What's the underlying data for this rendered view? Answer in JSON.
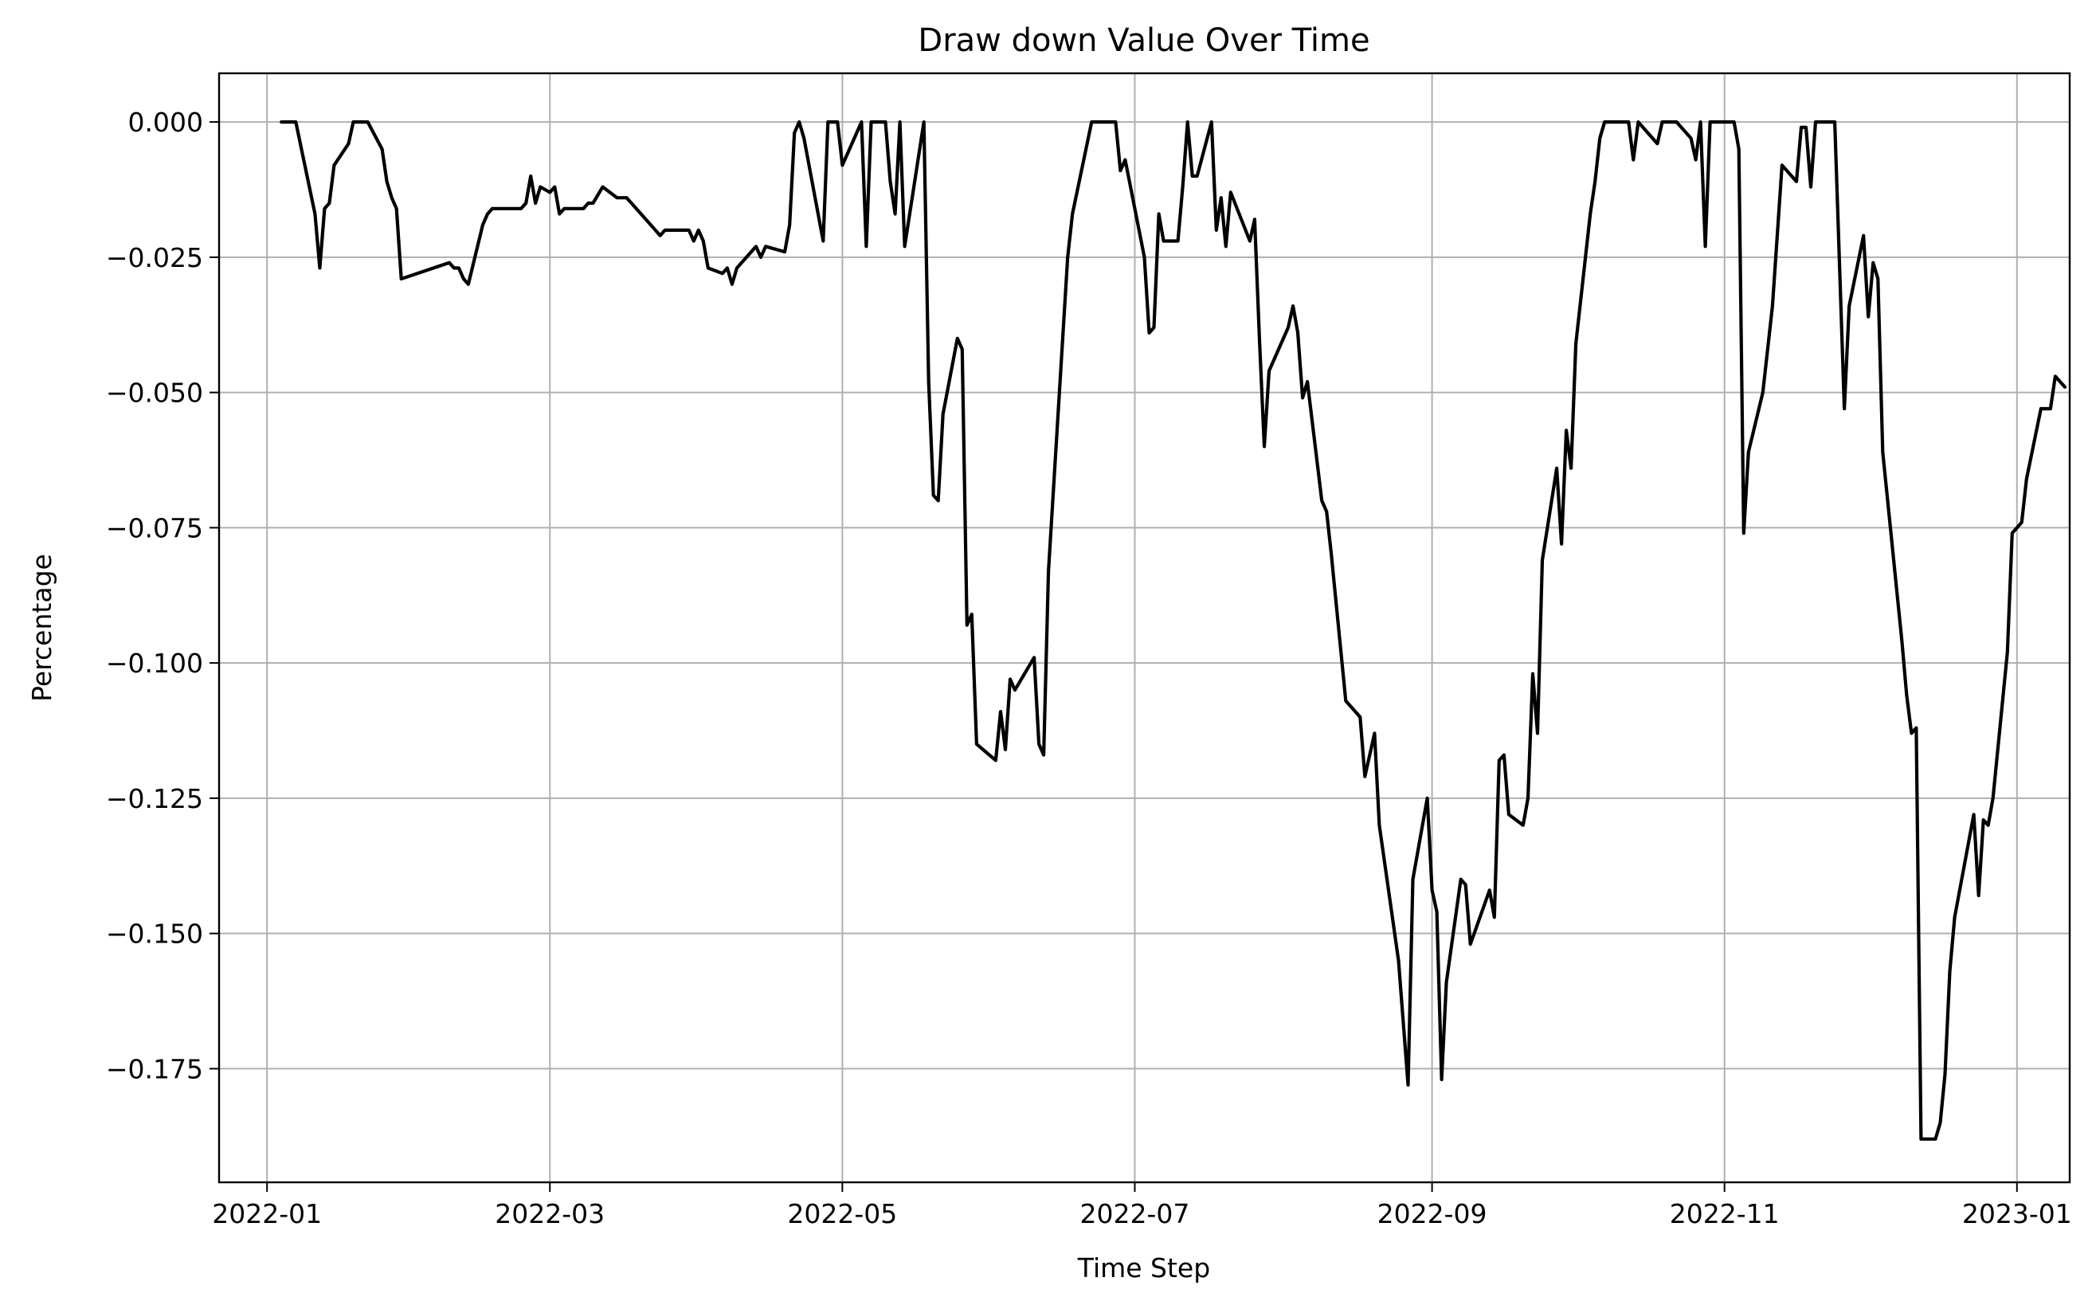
{
  "chart_data": {
    "type": "line",
    "title": "Draw down Value Over Time",
    "xlabel": "Time Step",
    "ylabel": "Percentage",
    "xlim": [
      "2021-12-22",
      "2023-01-12"
    ],
    "ylim": [
      -0.196,
      0.009
    ],
    "x_ticks": [
      "2022-01-01",
      "2022-03-01",
      "2022-05-01",
      "2022-07-01",
      "2022-09-01",
      "2022-11-01",
      "2023-01-01"
    ],
    "x_tick_labels": [
      "2022-01",
      "2022-03",
      "2022-05",
      "2022-07",
      "2022-09",
      "2022-11",
      "2023-01"
    ],
    "y_ticks": [
      0.0,
      -0.025,
      -0.05,
      -0.075,
      -0.1,
      -0.125,
      -0.15,
      -0.175
    ],
    "y_tick_labels": [
      "0.000",
      "−0.025",
      "−0.050",
      "−0.075",
      "−0.100",
      "−0.125",
      "−0.150",
      "−0.175"
    ],
    "grid": true,
    "line_color": "#000000",
    "series": [
      {
        "points": [
          [
            "2022-01-04",
            0.0
          ],
          [
            "2022-01-07",
            0.0
          ],
          [
            "2022-01-11",
            -0.017
          ],
          [
            "2022-01-12",
            -0.027
          ],
          [
            "2022-01-13",
            -0.016
          ],
          [
            "2022-01-14",
            -0.015
          ],
          [
            "2022-01-15",
            -0.008
          ],
          [
            "2022-01-18",
            -0.004
          ],
          [
            "2022-01-19",
            0.0
          ],
          [
            "2022-01-20",
            0.0
          ],
          [
            "2022-01-22",
            0.0
          ],
          [
            "2022-01-25",
            -0.005
          ],
          [
            "2022-01-26",
            -0.011
          ],
          [
            "2022-01-27",
            -0.014
          ],
          [
            "2022-01-28",
            -0.016
          ],
          [
            "2022-01-29",
            -0.029
          ],
          [
            "2022-02-08",
            -0.026
          ],
          [
            "2022-02-09",
            -0.027
          ],
          [
            "2022-02-10",
            -0.027
          ],
          [
            "2022-02-11",
            -0.029
          ],
          [
            "2022-02-12",
            -0.03
          ],
          [
            "2022-02-15",
            -0.019
          ],
          [
            "2022-02-16",
            -0.017
          ],
          [
            "2022-02-17",
            -0.016
          ],
          [
            "2022-02-23",
            -0.016
          ],
          [
            "2022-02-24",
            -0.015
          ],
          [
            "2022-02-25",
            -0.01
          ],
          [
            "2022-02-26",
            -0.015
          ],
          [
            "2022-02-27",
            -0.012
          ],
          [
            "2022-03-01",
            -0.013
          ],
          [
            "2022-03-02",
            -0.012
          ],
          [
            "2022-03-03",
            -0.017
          ],
          [
            "2022-03-04",
            -0.016
          ],
          [
            "2022-03-08",
            -0.016
          ],
          [
            "2022-03-09",
            -0.015
          ],
          [
            "2022-03-10",
            -0.015
          ],
          [
            "2022-03-12",
            -0.012
          ],
          [
            "2022-03-15",
            -0.014
          ],
          [
            "2022-03-17",
            -0.014
          ],
          [
            "2022-03-18",
            -0.015
          ],
          [
            "2022-03-23",
            -0.02
          ],
          [
            "2022-03-24",
            -0.021
          ],
          [
            "2022-03-25",
            -0.02
          ],
          [
            "2022-03-30",
            -0.02
          ],
          [
            "2022-03-31",
            -0.022
          ],
          [
            "2022-04-01",
            -0.02
          ],
          [
            "2022-04-02",
            -0.022
          ],
          [
            "2022-04-03",
            -0.027
          ],
          [
            "2022-04-06",
            -0.028
          ],
          [
            "2022-04-07",
            -0.027
          ],
          [
            "2022-04-08",
            -0.03
          ],
          [
            "2022-04-09",
            -0.027
          ],
          [
            "2022-04-13",
            -0.023
          ],
          [
            "2022-04-14",
            -0.025
          ],
          [
            "2022-04-15",
            -0.023
          ],
          [
            "2022-04-19",
            -0.024
          ],
          [
            "2022-04-20",
            -0.019
          ],
          [
            "2022-04-21",
            -0.002
          ],
          [
            "2022-04-22",
            0.0
          ],
          [
            "2022-04-23",
            -0.003
          ],
          [
            "2022-04-27",
            -0.022
          ],
          [
            "2022-04-28",
            0.0
          ],
          [
            "2022-04-30",
            0.0
          ],
          [
            "2022-05-01",
            -0.008
          ],
          [
            "2022-05-05",
            0.0
          ],
          [
            "2022-05-06",
            -0.023
          ],
          [
            "2022-05-07",
            0.0
          ],
          [
            "2022-05-10",
            0.0
          ],
          [
            "2022-05-11",
            -0.011
          ],
          [
            "2022-05-12",
            -0.017
          ],
          [
            "2022-05-13",
            0.0
          ],
          [
            "2022-05-14",
            -0.023
          ],
          [
            "2022-05-18",
            0.0
          ],
          [
            "2022-05-19",
            -0.048
          ],
          [
            "2022-05-20",
            -0.069
          ],
          [
            "2022-05-21",
            -0.07
          ],
          [
            "2022-05-22",
            -0.054
          ],
          [
            "2022-05-25",
            -0.04
          ],
          [
            "2022-05-26",
            -0.042
          ],
          [
            "2022-05-27",
            -0.093
          ],
          [
            "2022-05-28",
            -0.091
          ],
          [
            "2022-05-29",
            -0.115
          ],
          [
            "2022-06-02",
            -0.118
          ],
          [
            "2022-06-03",
            -0.109
          ],
          [
            "2022-06-04",
            -0.116
          ],
          [
            "2022-06-05",
            -0.103
          ],
          [
            "2022-06-06",
            -0.105
          ],
          [
            "2022-06-10",
            -0.099
          ],
          [
            "2022-06-11",
            -0.115
          ],
          [
            "2022-06-12",
            -0.117
          ],
          [
            "2022-06-13",
            -0.083
          ],
          [
            "2022-06-17",
            -0.025
          ],
          [
            "2022-06-18",
            -0.017
          ],
          [
            "2022-06-22",
            0.0
          ],
          [
            "2022-06-27",
            0.0
          ],
          [
            "2022-06-28",
            -0.009
          ],
          [
            "2022-06-29",
            -0.007
          ],
          [
            "2022-07-03",
            -0.025
          ],
          [
            "2022-07-04",
            -0.039
          ],
          [
            "2022-07-05",
            -0.038
          ],
          [
            "2022-07-06",
            -0.017
          ],
          [
            "2022-07-07",
            -0.022
          ],
          [
            "2022-07-10",
            -0.022
          ],
          [
            "2022-07-11",
            -0.012
          ],
          [
            "2022-07-12",
            0.0
          ],
          [
            "2022-07-13",
            -0.01
          ],
          [
            "2022-07-14",
            -0.01
          ],
          [
            "2022-07-17",
            0.0
          ],
          [
            "2022-07-18",
            -0.02
          ],
          [
            "2022-07-19",
            -0.014
          ],
          [
            "2022-07-20",
            -0.023
          ],
          [
            "2022-07-21",
            -0.013
          ],
          [
            "2022-07-25",
            -0.022
          ],
          [
            "2022-07-26",
            -0.018
          ],
          [
            "2022-07-27",
            -0.04
          ],
          [
            "2022-07-28",
            -0.06
          ],
          [
            "2022-07-29",
            -0.046
          ],
          [
            "2022-08-02",
            -0.038
          ],
          [
            "2022-08-03",
            -0.034
          ],
          [
            "2022-08-04",
            -0.039
          ],
          [
            "2022-08-05",
            -0.051
          ],
          [
            "2022-08-06",
            -0.048
          ],
          [
            "2022-08-09",
            -0.07
          ],
          [
            "2022-08-10",
            -0.072
          ],
          [
            "2022-08-11",
            -0.08
          ],
          [
            "2022-08-14",
            -0.107
          ],
          [
            "2022-08-17",
            -0.11
          ],
          [
            "2022-08-18",
            -0.121
          ],
          [
            "2022-08-20",
            -0.113
          ],
          [
            "2022-08-21",
            -0.13
          ],
          [
            "2022-08-25",
            -0.155
          ],
          [
            "2022-08-27",
            -0.178
          ],
          [
            "2022-08-28",
            -0.14
          ],
          [
            "2022-08-31",
            -0.125
          ],
          [
            "2022-09-01",
            -0.142
          ],
          [
            "2022-09-02",
            -0.146
          ],
          [
            "2022-09-03",
            -0.177
          ],
          [
            "2022-09-04",
            -0.159
          ],
          [
            "2022-09-07",
            -0.14
          ],
          [
            "2022-09-08",
            -0.141
          ],
          [
            "2022-09-09",
            -0.152
          ],
          [
            "2022-09-13",
            -0.142
          ],
          [
            "2022-09-14",
            -0.147
          ],
          [
            "2022-09-15",
            -0.118
          ],
          [
            "2022-09-16",
            -0.117
          ],
          [
            "2022-09-17",
            -0.128
          ],
          [
            "2022-09-20",
            -0.13
          ],
          [
            "2022-09-21",
            -0.125
          ],
          [
            "2022-09-22",
            -0.102
          ],
          [
            "2022-09-23",
            -0.113
          ],
          [
            "2022-09-24",
            -0.081
          ],
          [
            "2022-09-27",
            -0.064
          ],
          [
            "2022-09-28",
            -0.078
          ],
          [
            "2022-09-29",
            -0.057
          ],
          [
            "2022-09-30",
            -0.064
          ],
          [
            "2022-10-01",
            -0.041
          ],
          [
            "2022-10-04",
            -0.017
          ],
          [
            "2022-10-05",
            -0.011
          ],
          [
            "2022-10-06",
            -0.003
          ],
          [
            "2022-10-07",
            0.0
          ],
          [
            "2022-10-12",
            0.0
          ],
          [
            "2022-10-13",
            -0.007
          ],
          [
            "2022-10-14",
            0.0
          ],
          [
            "2022-10-18",
            -0.004
          ],
          [
            "2022-10-19",
            0.0
          ],
          [
            "2022-10-22",
            0.0
          ],
          [
            "2022-10-25",
            -0.003
          ],
          [
            "2022-10-26",
            -0.007
          ],
          [
            "2022-10-27",
            0.0
          ],
          [
            "2022-10-28",
            -0.023
          ],
          [
            "2022-10-29",
            0.0
          ],
          [
            "2022-11-03",
            0.0
          ],
          [
            "2022-11-04",
            -0.005
          ],
          [
            "2022-11-05",
            -0.076
          ],
          [
            "2022-11-06",
            -0.061
          ],
          [
            "2022-11-09",
            -0.05
          ],
          [
            "2022-11-11",
            -0.034
          ],
          [
            "2022-11-13",
            -0.008
          ],
          [
            "2022-11-16",
            -0.011
          ],
          [
            "2022-11-17",
            -0.001
          ],
          [
            "2022-11-18",
            -0.001
          ],
          [
            "2022-11-19",
            -0.012
          ],
          [
            "2022-11-20",
            0.0
          ],
          [
            "2022-11-24",
            0.0
          ],
          [
            "2022-11-26",
            -0.053
          ],
          [
            "2022-11-27",
            -0.034
          ],
          [
            "2022-11-30",
            -0.021
          ],
          [
            "2022-12-01",
            -0.036
          ],
          [
            "2022-12-02",
            -0.026
          ],
          [
            "2022-12-03",
            -0.029
          ],
          [
            "2022-12-04",
            -0.061
          ],
          [
            "2022-12-08",
            -0.096
          ],
          [
            "2022-12-09",
            -0.106
          ],
          [
            "2022-12-10",
            -0.113
          ],
          [
            "2022-12-11",
            -0.112
          ],
          [
            "2022-12-12",
            -0.188
          ],
          [
            "2022-12-15",
            -0.188
          ],
          [
            "2022-12-16",
            -0.185
          ],
          [
            "2022-12-17",
            -0.176
          ],
          [
            "2022-12-18",
            -0.157
          ],
          [
            "2022-12-19",
            -0.147
          ],
          [
            "2022-12-23",
            -0.128
          ],
          [
            "2022-12-24",
            -0.143
          ],
          [
            "2022-12-25",
            -0.129
          ],
          [
            "2022-12-26",
            -0.13
          ],
          [
            "2022-12-27",
            -0.125
          ],
          [
            "2022-12-30",
            -0.098
          ],
          [
            "2022-12-31",
            -0.076
          ],
          [
            "2023-01-02",
            -0.074
          ],
          [
            "2023-01-03",
            -0.066
          ],
          [
            "2023-01-06",
            -0.053
          ],
          [
            "2023-01-07",
            -0.053
          ],
          [
            "2023-01-08",
            -0.053
          ],
          [
            "2023-01-09",
            -0.047
          ],
          [
            "2023-01-11",
            -0.049
          ]
        ]
      }
    ]
  }
}
